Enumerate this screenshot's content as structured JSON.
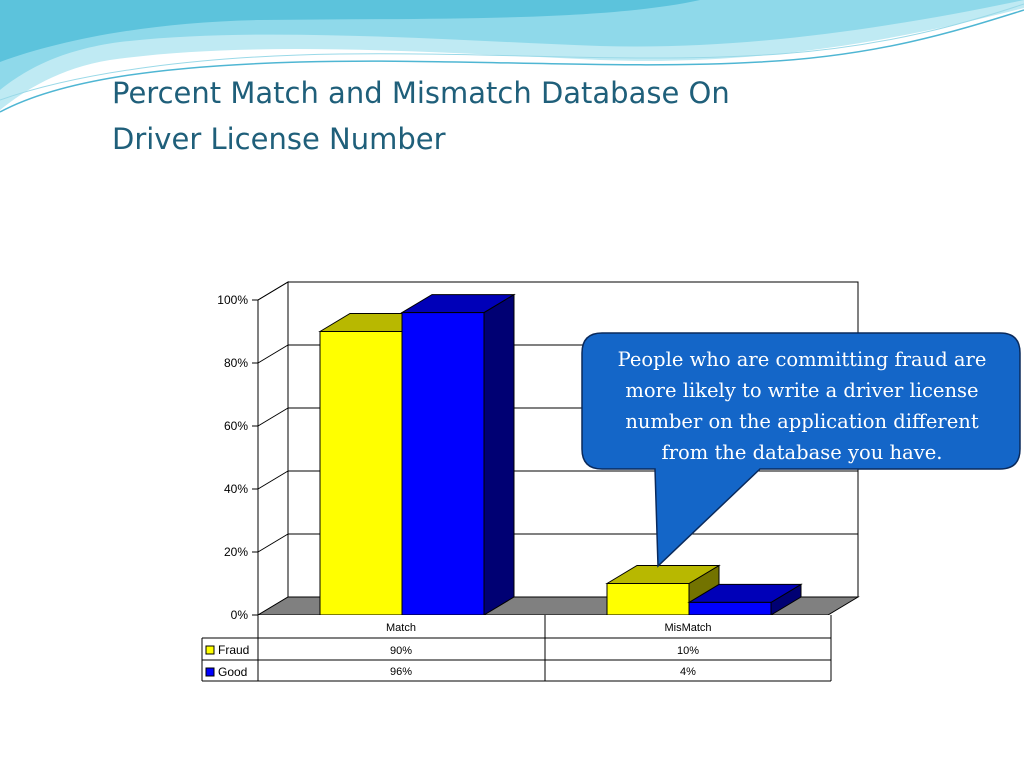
{
  "slide": {
    "title_lines": [
      "Percent Match and Mismatch Database On",
      "Driver License Number"
    ],
    "callout_lines": [
      "People who are committing fraud are",
      "more likely to write a driver license",
      "number on the application different",
      "from the database you have."
    ],
    "colors": {
      "title": "#1f5f7a",
      "callout_fill": "#1466c8",
      "callout_border": "#0a2a5c",
      "wave": "#7fd3e6"
    }
  },
  "chart_data": {
    "type": "bar",
    "style": "3d-clustered-column",
    "categories": [
      "Match",
      "MisMatch"
    ],
    "series": [
      {
        "name": "Fraud",
        "values": [
          90,
          10
        ],
        "labels": [
          "90%",
          "10%"
        ],
        "color": "#ffff00"
      },
      {
        "name": "Good",
        "values": [
          96,
          4
        ],
        "labels": [
          "96%",
          "4%"
        ],
        "color": "#0000ff"
      }
    ],
    "yticks": [
      "0%",
      "20%",
      "40%",
      "60%",
      "80%",
      "100%"
    ],
    "ylim": [
      0,
      100
    ],
    "grid": true,
    "legend": "data-table-left"
  }
}
